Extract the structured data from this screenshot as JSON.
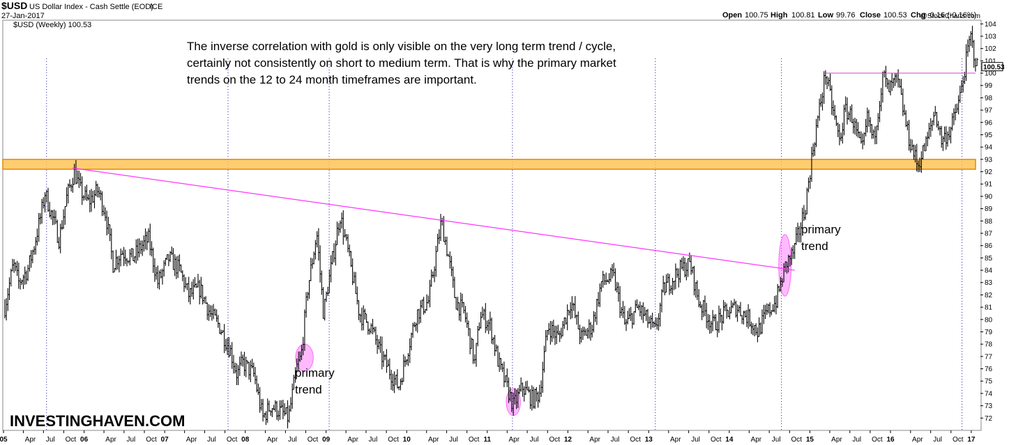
{
  "header": {
    "symbol": "$USD",
    "name": "US Dollar Index - Cash Settle (EOD)",
    "exchange": "ICE",
    "date": "27-Jan-2017",
    "series_label": "$USD (Weekly) 100.53",
    "watermark": "@StockCharts.com",
    "open_label": "Open",
    "open": "100.75",
    "high_label": "High",
    "high": "100.81",
    "low_label": "Low",
    "low": "99.76",
    "close_label": "Close",
    "close": "100.53",
    "chg_label": "Chg",
    "chg": "-0.16 (-0.16%)"
  },
  "annotations": {
    "note_lines": [
      "The inverse correlation with gold is only visible on the very long term trend / cycle,",
      "certainly not consistently on short to medium term. That is why the primary market",
      "trends on the 12 to 24 month timeframes are important."
    ],
    "primary_trend_1": [
      "primary",
      "trend"
    ],
    "primary_trend_2": [
      "primary",
      "trend"
    ],
    "brand": "INVESTINGHAVEN.COM"
  },
  "colors": {
    "price": "#000000",
    "trendline": "#ff33ff",
    "support_band": "#ffc04d",
    "support_border": "#e08a00",
    "ellipse": "#ff66ff",
    "resistance_line": "#cc44cc",
    "gridline": "#1a1aaa"
  },
  "chart_data": {
    "type": "line",
    "title": "$USD (Weekly) 100.53",
    "x_range": [
      "2005-01-01",
      "2017-02-05"
    ],
    "ylim": [
      71,
      104.3
    ],
    "yticks": [
      72,
      73,
      74,
      75,
      76,
      77,
      78,
      79,
      80,
      81,
      82,
      83,
      84,
      85,
      86,
      87,
      88,
      89,
      90,
      91,
      92,
      93,
      94,
      95,
      96,
      97,
      98,
      99,
      100,
      101,
      102,
      103,
      104
    ],
    "last_value_label": "100.53",
    "x_tick_labels": [
      "05",
      "Apr",
      "Jul",
      "Oct",
      "06",
      "Apr",
      "Jul",
      "Oct",
      "07",
      "Apr",
      "Jul",
      "Oct",
      "08",
      "Apr",
      "Jul",
      "Oct",
      "09",
      "Apr",
      "Jul",
      "Oct",
      "10",
      "Apr",
      "Jul",
      "Oct",
      "11",
      "Apr",
      "Jul",
      "Oct",
      "12",
      "Apr",
      "Jul",
      "Oct",
      "13",
      "Apr",
      "Jul",
      "Oct",
      "14",
      "Apr",
      "Jul",
      "Oct",
      "15",
      "Apr",
      "Jul",
      "Oct",
      "16",
      "Apr",
      "Jul",
      "Oct",
      "17"
    ],
    "series": [
      {
        "points": [
          [
            "2005-01-07",
            81.0
          ],
          [
            "2005-02-15",
            84.5
          ],
          [
            "2005-03-10",
            83.0
          ],
          [
            "2005-04-20",
            84.0
          ],
          [
            "2005-05-20",
            86.0
          ],
          [
            "2005-06-20",
            88.5
          ],
          [
            "2005-07-08",
            90.3
          ],
          [
            "2005-08-15",
            88.0
          ],
          [
            "2005-09-10",
            86.5
          ],
          [
            "2005-10-15",
            90.0
          ],
          [
            "2005-11-18",
            92.0
          ],
          [
            "2005-12-15",
            90.5
          ],
          [
            "2006-01-20",
            89.5
          ],
          [
            "2006-03-05",
            90.5
          ],
          [
            "2006-04-10",
            88.5
          ],
          [
            "2006-05-12",
            84.5
          ],
          [
            "2006-06-20",
            85.5
          ],
          [
            "2006-08-10",
            85.0
          ],
          [
            "2006-09-20",
            86.0
          ],
          [
            "2006-10-20",
            86.5
          ],
          [
            "2006-12-01",
            83.0
          ],
          [
            "2007-01-20",
            85.0
          ],
          [
            "2007-03-10",
            84.0
          ],
          [
            "2007-04-20",
            82.0
          ],
          [
            "2007-06-10",
            82.5
          ],
          [
            "2007-07-25",
            80.5
          ],
          [
            "2007-09-05",
            79.5
          ],
          [
            "2007-10-25",
            77.5
          ],
          [
            "2007-11-25",
            75.5
          ],
          [
            "2007-12-20",
            76.5
          ],
          [
            "2008-02-10",
            75.5
          ],
          [
            "2008-03-20",
            72.0
          ],
          [
            "2008-04-25",
            73.0
          ],
          [
            "2008-06-10",
            72.5
          ],
          [
            "2008-07-15",
            72.0
          ],
          [
            "2008-08-20",
            76.0
          ],
          [
            "2008-09-10",
            77.0
          ],
          [
            "2008-10-10",
            82.5
          ],
          [
            "2008-11-20",
            87.0
          ],
          [
            "2008-12-20",
            80.5
          ],
          [
            "2009-03-05",
            88.5
          ],
          [
            "2009-04-10",
            85.5
          ],
          [
            "2009-06-01",
            80.5
          ],
          [
            "2009-07-20",
            79.5
          ],
          [
            "2009-09-10",
            77.0
          ],
          [
            "2009-11-25",
            74.5
          ],
          [
            "2010-01-05",
            77.5
          ],
          [
            "2010-02-15",
            80.5
          ],
          [
            "2010-04-10",
            81.5
          ],
          [
            "2010-06-07",
            88.0
          ],
          [
            "2010-07-10",
            85.0
          ],
          [
            "2010-08-10",
            81.5
          ],
          [
            "2010-09-20",
            80.5
          ],
          [
            "2010-11-05",
            76.5
          ],
          [
            "2010-12-01",
            80.5
          ],
          [
            "2011-01-15",
            79.5
          ],
          [
            "2011-02-20",
            76.5
          ],
          [
            "2011-04-29",
            73.0
          ],
          [
            "2011-06-10",
            74.5
          ],
          [
            "2011-07-25",
            73.5
          ],
          [
            "2011-08-25",
            74.0
          ],
          [
            "2011-10-03",
            79.5
          ],
          [
            "2011-11-20",
            78.5
          ],
          [
            "2012-01-15",
            81.5
          ],
          [
            "2012-03-01",
            78.5
          ],
          [
            "2012-04-20",
            79.5
          ],
          [
            "2012-06-01",
            83.0
          ],
          [
            "2012-07-25",
            83.5
          ],
          [
            "2012-09-15",
            79.5
          ],
          [
            "2012-11-15",
            81.0
          ],
          [
            "2013-01-31",
            79.0
          ],
          [
            "2013-03-10",
            82.5
          ],
          [
            "2013-05-20",
            84.0
          ],
          [
            "2013-07-08",
            84.5
          ],
          [
            "2013-08-15",
            81.5
          ],
          [
            "2013-10-20",
            79.5
          ],
          [
            "2013-12-15",
            80.5
          ],
          [
            "2014-02-01",
            81.0
          ],
          [
            "2014-04-05",
            80.0
          ],
          [
            "2014-05-10",
            79.0
          ],
          [
            "2014-06-20",
            80.5
          ],
          [
            "2014-08-01",
            81.5
          ],
          [
            "2014-09-15",
            84.5
          ],
          [
            "2014-10-20",
            85.5
          ],
          [
            "2014-12-10",
            89.0
          ],
          [
            "2015-01-20",
            94.5
          ],
          [
            "2015-03-13",
            100.0
          ],
          [
            "2015-04-15",
            97.0
          ],
          [
            "2015-05-15",
            94.5
          ],
          [
            "2015-06-10",
            97.0
          ],
          [
            "2015-07-10",
            96.5
          ],
          [
            "2015-08-25",
            93.5
          ],
          [
            "2015-09-20",
            96.5
          ],
          [
            "2015-10-15",
            94.5
          ],
          [
            "2015-12-01",
            100.0
          ],
          [
            "2015-12-20",
            98.5
          ],
          [
            "2016-02-01",
            99.5
          ],
          [
            "2016-03-20",
            95.0
          ],
          [
            "2016-05-03",
            92.5
          ],
          [
            "2016-06-15",
            94.5
          ],
          [
            "2016-07-20",
            97.0
          ],
          [
            "2016-08-20",
            94.5
          ],
          [
            "2016-10-01",
            95.5
          ],
          [
            "2016-11-10",
            98.0
          ],
          [
            "2016-12-28",
            103.0
          ],
          [
            "2017-01-15",
            101.5
          ],
          [
            "2017-01-27",
            100.53
          ]
        ]
      }
    ],
    "trendline": {
      "from": [
        "2005-11-10",
        92.3
      ],
      "to": [
        "2014-10-25",
        84.0
      ]
    },
    "support_band": [
      92.2,
      93.0
    ],
    "resistance_line": {
      "from": [
        "2015-03-15",
        100.0
      ],
      "to": [
        "2017-01-20",
        100.0
      ]
    },
    "vertical_gridlines": [
      "2005-07-15",
      "2007-10-15",
      "2009-01-15",
      "2011-04-25",
      "2013-01-31",
      "2014-08-25",
      "2016-11-20"
    ],
    "ellipses": [
      {
        "center": [
          "2008-09-25",
          76.9
        ],
        "rx_days": 40,
        "ry_value": 1.1
      },
      {
        "center": [
          "2011-04-29",
          73.3
        ],
        "rx_days": 32,
        "ry_value": 1.1
      },
      {
        "center": [
          "2014-09-10",
          84.4
        ],
        "rx_days": 28,
        "ry_value": 2.5
      }
    ]
  }
}
